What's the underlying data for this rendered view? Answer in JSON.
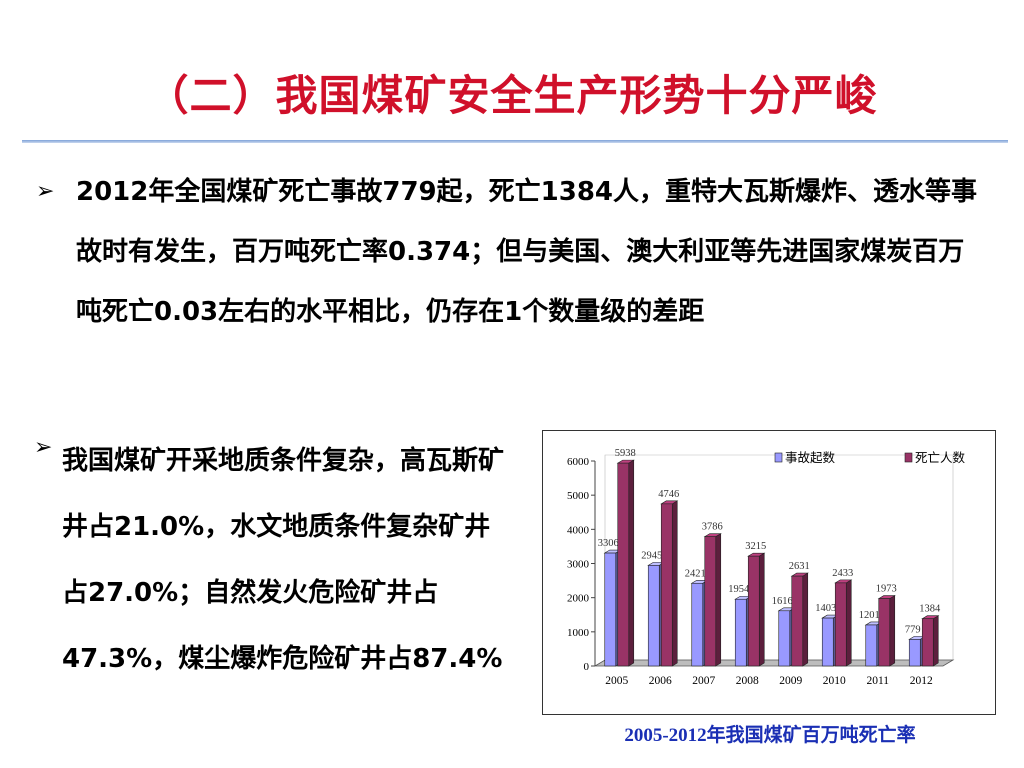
{
  "title": "（二）我国煤矿安全生产形势十分严峻",
  "bullet_symbol": "➢",
  "paragraph1": "2012年全国煤矿死亡事故779起，死亡1384人，重特大瓦斯爆炸、透水等事故时有发生，百万吨死亡率0.374；但与美国、澳大利亚等先进国家煤炭百万吨死亡0.03左右的水平相比，仍存在1个数量级的差距",
  "paragraph2": "我国煤矿开采地质条件复杂，高瓦斯矿井占21.0%，水文地质条件复杂矿井占27.0%；自然发火危险矿井占47.3%，煤尘爆炸危险矿井占87.4%",
  "caption": "2005-2012年我国煤矿百万吨死亡率",
  "chart_data": {
    "type": "bar",
    "style": "3d-clustered-column",
    "categories": [
      "2005",
      "2006",
      "2007",
      "2008",
      "2009",
      "2010",
      "2011",
      "2012"
    ],
    "series": [
      {
        "name": "事故起数",
        "color": "#9999ff",
        "values": [
          3306,
          2945,
          2421,
          1954,
          1616,
          1403,
          1201,
          779
        ]
      },
      {
        "name": "死亡人数",
        "color": "#993366",
        "values": [
          5938,
          4746,
          3786,
          3215,
          2631,
          2433,
          1973,
          1384
        ]
      }
    ],
    "data_labels": {
      "事故起数": [
        "3306",
        "2945",
        "2421",
        "1954",
        "1616",
        "1403",
        "1201",
        "779"
      ],
      "死亡人数": [
        "5938",
        "4746",
        "3786",
        "3215",
        "2631",
        "2433",
        "1973",
        "1384"
      ]
    },
    "ylim": [
      0,
      6000
    ],
    "yticks": [
      0,
      1000,
      2000,
      3000,
      4000,
      5000,
      6000
    ],
    "ytick_labels": [
      "0",
      "1000",
      "2000",
      "3000",
      "4000",
      "5000",
      "6000"
    ],
    "legend": "top-right",
    "grid": false
  }
}
